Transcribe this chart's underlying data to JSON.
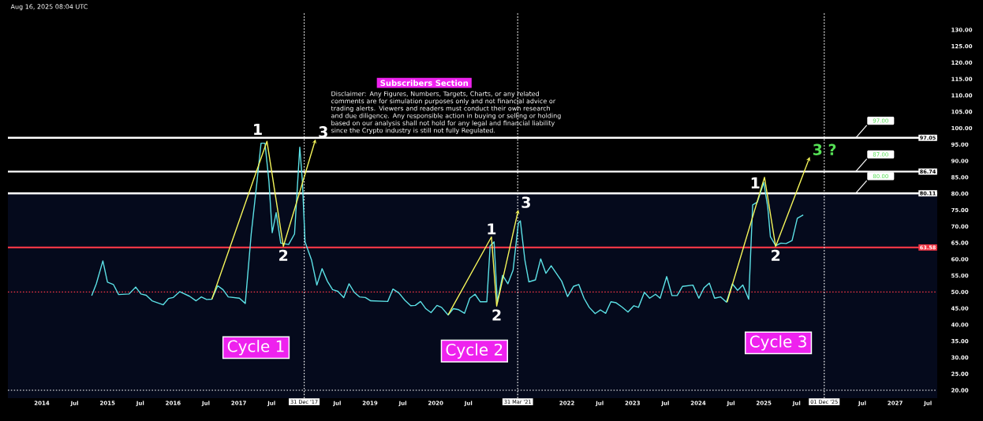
{
  "chart_data": {
    "type": "line",
    "subtitle": "Subscribers Section",
    "xlim": [
      2013.483,
      2027.642
    ],
    "ylim": [
      17.6,
      135.5
    ],
    "xticks": [
      {
        "value": 2014,
        "label": "2014"
      },
      {
        "value": 2014.5,
        "label": "Jul"
      },
      {
        "value": 2015,
        "label": "2015"
      },
      {
        "value": 2015.5,
        "label": "Jul"
      },
      {
        "value": 2016,
        "label": "2016"
      },
      {
        "value": 2016.5,
        "label": "Jul"
      },
      {
        "value": 2017,
        "label": "2017"
      },
      {
        "value": 2017.5,
        "label": "Jul"
      },
      {
        "value": 2018.5,
        "label": "Jul"
      },
      {
        "value": 2019,
        "label": "2019"
      },
      {
        "value": 2019.5,
        "label": "Jul"
      },
      {
        "value": 2020,
        "label": "2020"
      },
      {
        "value": 2020.5,
        "label": "Jul"
      },
      {
        "value": 2022,
        "label": "2022"
      },
      {
        "value": 2022.5,
        "label": "Jul"
      },
      {
        "value": 2023,
        "label": "2023"
      },
      {
        "value": 2023.5,
        "label": "Jul"
      },
      {
        "value": 2024,
        "label": "2024"
      },
      {
        "value": 2024.5,
        "label": "Jul"
      },
      {
        "value": 2025,
        "label": "2025"
      },
      {
        "value": 2025.5,
        "label": "Jul"
      },
      {
        "value": 2026.5,
        "label": "Jul"
      },
      {
        "value": 2027,
        "label": "2027"
      },
      {
        "value": 2027.5,
        "label": "Jul"
      }
    ],
    "yticks": [
      {
        "value": 20,
        "label": "20.00"
      },
      {
        "value": 25,
        "label": "25.00"
      },
      {
        "value": 30,
        "label": "30.00"
      },
      {
        "value": 35,
        "label": "35.00"
      },
      {
        "value": 40,
        "label": "40.00"
      },
      {
        "value": 45,
        "label": "45.00"
      },
      {
        "value": 50,
        "label": "50.00"
      },
      {
        "value": 55,
        "label": "55.00"
      },
      {
        "value": 60,
        "label": "60.00"
      },
      {
        "value": 65,
        "label": "65.00"
      },
      {
        "value": 70,
        "label": "70.00"
      },
      {
        "value": 75,
        "label": "75.00"
      },
      {
        "value": 80,
        "label": "80.00"
      },
      {
        "value": 85,
        "label": "85.00"
      },
      {
        "value": 90,
        "label": "90.00"
      },
      {
        "value": 95,
        "label": "95.00"
      },
      {
        "value": 100,
        "label": "100.00"
      },
      {
        "value": 105,
        "label": "105.00"
      },
      {
        "value": 110,
        "label": "110.00"
      },
      {
        "value": 115,
        "label": "115.00"
      },
      {
        "value": 120,
        "label": "120.00"
      },
      {
        "value": 125,
        "label": "125.00"
      },
      {
        "value": 130,
        "label": "130.00"
      }
    ],
    "series": [
      {
        "color": "#5ce1e6",
        "x": [
          2014.76,
          2014.83,
          2014.93,
          2015.0,
          2015.09,
          2015.17,
          2015.33,
          2015.43,
          2015.51,
          2015.59,
          2015.68,
          2015.85,
          2015.93,
          2016.0,
          2016.1,
          2016.25,
          2016.35,
          2016.43,
          2016.51,
          2016.59,
          2016.68,
          2016.76,
          2016.84,
          2017.01,
          2017.1,
          2017.19,
          2017.27,
          2017.34,
          2017.4,
          2017.46,
          2017.51,
          2017.57,
          2017.64,
          2017.76,
          2017.85,
          2017.93,
          2017.97,
          2018.01,
          2018.11,
          2018.19,
          2018.27,
          2018.35,
          2018.43,
          2018.51,
          2018.6,
          2018.68,
          2018.76,
          2018.84,
          2018.93,
          2019.01,
          2019.27,
          2019.35,
          2019.44,
          2019.53,
          2019.62,
          2019.69,
          2019.77,
          2019.85,
          2019.93,
          2020.02,
          2020.09,
          2020.19,
          2020.27,
          2020.35,
          2020.44,
          2020.52,
          2020.6,
          2020.68,
          2020.78,
          2020.83,
          2020.89,
          2020.94,
          2021.02,
          2021.1,
          2021.18,
          2021.26,
          2021.29,
          2021.36,
          2021.42,
          2021.52,
          2021.6,
          2021.68,
          2021.76,
          2021.92,
          2022.01,
          2022.1,
          2022.18,
          2022.26,
          2022.34,
          2022.43,
          2022.51,
          2022.59,
          2022.67,
          2022.75,
          2022.84,
          2022.93,
          2023.02,
          2023.09,
          2023.18,
          2023.26,
          2023.35,
          2023.42,
          2023.52,
          2023.6,
          2023.68,
          2023.76,
          2023.92,
          2024.01,
          2024.09,
          2024.17,
          2024.25,
          2024.34,
          2024.43,
          2024.52,
          2024.6,
          2024.68,
          2024.77,
          2024.83,
          2024.9,
          2025.0,
          2025.06,
          2025.1,
          2025.18,
          2025.26,
          2025.34,
          2025.43,
          2025.51,
          2025.6
        ],
        "values": [
          48.9,
          52.5,
          59.5,
          53.0,
          52.3,
          49.2,
          49.4,
          51.5,
          49.4,
          49.0,
          47.3,
          46.1,
          48.0,
          48.3,
          50.1,
          48.7,
          47.3,
          48.5,
          47.7,
          47.8,
          51.9,
          50.7,
          48.5,
          48.1,
          46.5,
          67.7,
          82.2,
          95.4,
          95.4,
          83.8,
          68.1,
          74.2,
          64.9,
          64.5,
          67.7,
          94.2,
          83.8,
          65.3,
          59.7,
          52.1,
          57.1,
          53.3,
          50.7,
          50.2,
          48.3,
          52.5,
          49.9,
          48.5,
          48.3,
          47.3,
          47.1,
          50.9,
          49.7,
          47.5,
          45.8,
          45.9,
          47.1,
          44.9,
          43.7,
          45.9,
          45.3,
          43.0,
          44.9,
          44.6,
          43.5,
          48.1,
          49.3,
          47.0,
          47.0,
          64.1,
          65.3,
          46.9,
          55.1,
          52.5,
          56.7,
          71.0,
          71.7,
          59.7,
          53.1,
          53.7,
          60.1,
          55.7,
          58.0,
          53.3,
          48.6,
          51.7,
          52.3,
          48.1,
          45.3,
          43.4,
          44.5,
          43.5,
          47.0,
          46.7,
          45.4,
          43.9,
          45.8,
          45.3,
          49.9,
          48.1,
          49.3,
          48.1,
          54.7,
          48.9,
          48.9,
          51.7,
          52.1,
          48.1,
          51.3,
          52.7,
          48.1,
          48.5,
          46.9,
          52.5,
          50.5,
          52.1,
          47.8,
          76.6,
          77.4,
          83.4,
          75.8,
          66.9,
          64.1,
          64.9,
          64.8,
          65.7,
          72.5,
          73.5
        ]
      },
      {
        "color": "#f5f55a",
        "x": [
          2016.59,
          2017.43,
          2017.68,
          2018.17
        ],
        "values": [
          47.8,
          96.0,
          63.9,
          96.6
        ]
      },
      {
        "color": "#f5f55a",
        "x": [
          2020.19,
          2020.85,
          2020.93,
          2021.26
        ],
        "values": [
          43.0,
          66.8,
          45.7,
          75.1
        ]
      },
      {
        "color": "#f5f55a",
        "x": [
          2024.44,
          2025.01,
          2025.18,
          2025.7
        ],
        "values": [
          46.9,
          85.0,
          63.9,
          91.2
        ]
      }
    ],
    "bands": [
      {
        "axis": "y",
        "from": 17.6,
        "to": 80.11,
        "color": "#050a1c"
      }
    ],
    "ref_lines": [
      {
        "axis": "y",
        "value": 97.05,
        "label": "97.05",
        "color": "#ffffff",
        "line_style": "solid"
      },
      {
        "axis": "y",
        "value": 86.74,
        "label": "86.74",
        "color": "#ffffff",
        "line_style": "solid"
      },
      {
        "axis": "y",
        "value": 80.11,
        "label": "80.11",
        "color": "#ffffff",
        "line_style": "solid"
      },
      {
        "axis": "y",
        "value": 63.58,
        "label": "63.58",
        "color": "#f23645",
        "line_style": "solid"
      },
      {
        "axis": "y",
        "value": 50,
        "color": "#f23645",
        "line_style": "dotted"
      },
      {
        "axis": "y",
        "value": 20,
        "color": "#ffffff",
        "line_style": "dotted"
      },
      {
        "axis": "x",
        "value": 2017.997,
        "label": "31 Dec '17",
        "color": "#ffffff",
        "line_style": "dotted"
      },
      {
        "axis": "x",
        "value": 2021.25,
        "label": "31 Mar '21",
        "color": "#ffffff",
        "line_style": "dotted"
      },
      {
        "axis": "x",
        "value": 2025.92,
        "label": "01 Dec '25",
        "color": "#ffffff",
        "line_style": "dotted"
      }
    ],
    "annotations": [
      "Aug 16, 2025 08:04 UTC",
      "Disclaimer: Any Figures, Numbers, Targets, Charts, or any related comments are for simulation purposes only and not financial advice or trading alerts. Viewers and readers must conduct their own research and due diligence. Any responsible action in buying or selling or holding based on our analysis shall not hold for any legal and financial liability since the Crypto industry is still not fully Regulated.",
      {
        "text": "97.00",
        "x": 2026.4,
        "y": 97.05
      },
      {
        "text": "87.00",
        "x": 2026.4,
        "y": 86.74
      },
      {
        "text": "80.00",
        "x": 2026.4,
        "y": 80.11
      },
      {
        "text": "1",
        "x": 2017.43,
        "y": 96.0
      },
      {
        "text": "2",
        "x": 2017.68,
        "y": 63.9
      },
      {
        "text": "3",
        "x": 2018.17,
        "y": 96.6
      },
      {
        "text": "1",
        "x": 2020.85,
        "y": 66.8
      },
      {
        "text": "2",
        "x": 2020.93,
        "y": 45.7
      },
      {
        "text": "3",
        "x": 2021.26,
        "y": 75.1
      },
      {
        "text": "1",
        "x": 2025.01,
        "y": 85.0
      },
      {
        "text": "2",
        "x": 2025.18,
        "y": 63.9
      },
      {
        "text": "3 ?",
        "x": 2025.7,
        "y": 91.2
      },
      "Cycle 1",
      "Cycle 2",
      "Cycle 3"
    ]
  }
}
